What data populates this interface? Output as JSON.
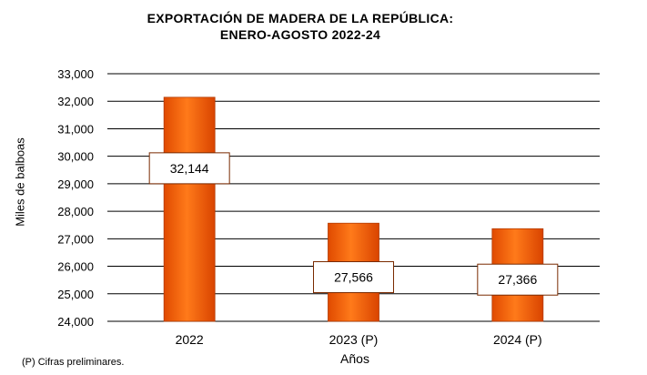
{
  "chart_data": {
    "type": "bar",
    "title": "EXPORTACIÓN  DE  MADERA  DE  LA  REPÚBLICA:",
    "subtitle": "ENERO-AGOSTO  2022-24",
    "xlabel": "Años",
    "ylabel": "Miles de balboas",
    "categories": [
      "2022",
      "2023 (P)",
      "2024 (P)"
    ],
    "values": [
      32144,
      27566,
      27366
    ],
    "value_labels": [
      "32,144",
      "27,566",
      "27,366"
    ],
    "ylim": [
      24000,
      33000
    ],
    "yticks": [
      24000,
      25000,
      26000,
      27000,
      28000,
      29000,
      30000,
      31000,
      32000,
      33000
    ],
    "ytick_labels": [
      "24,000",
      "25,000",
      "26,000",
      "27,000",
      "28,000",
      "29,000",
      "30,000",
      "31,000",
      "32,000",
      "33,000"
    ],
    "grid": true,
    "bar_color": "#ff6a00",
    "footnote": "(P) Cifras preliminares."
  }
}
